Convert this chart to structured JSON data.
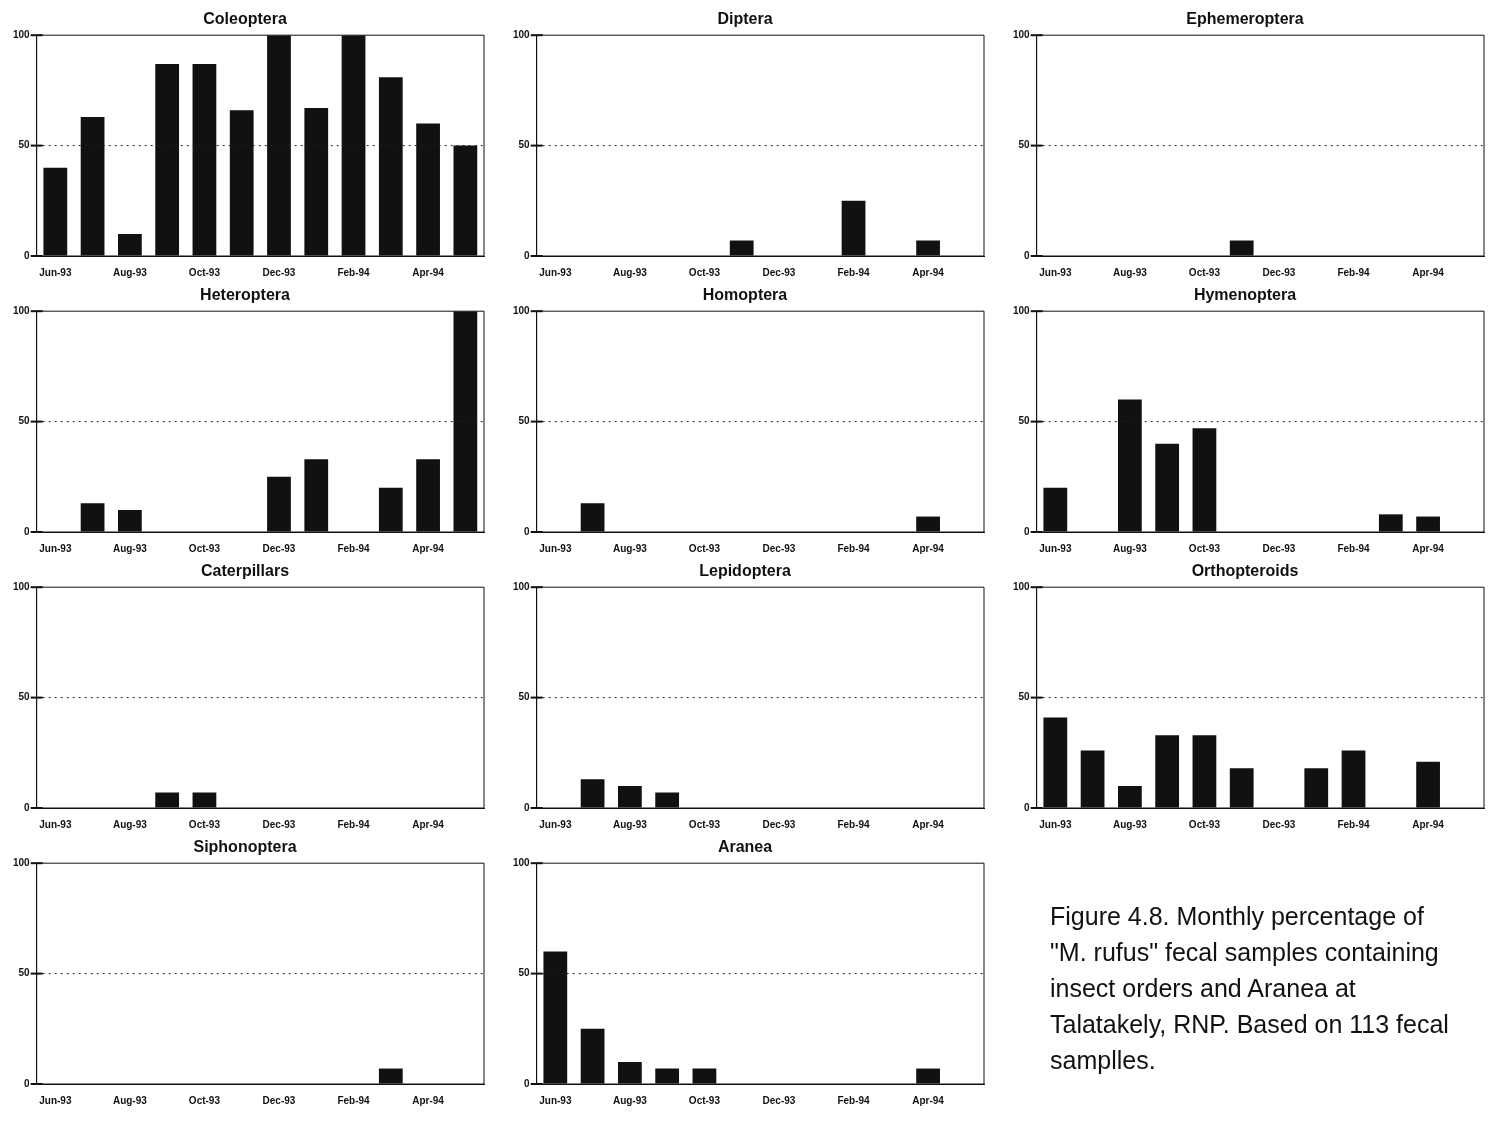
{
  "chart_data": [
    {
      "type": "bar",
      "title": "Coleoptera",
      "categories": [
        "Jun-93",
        null,
        "Aug-93",
        null,
        "Oct-93",
        null,
        "Dec-93",
        null,
        "Feb-94",
        null,
        "Apr-94",
        null
      ],
      "values": [
        40,
        63,
        10,
        87,
        87,
        66,
        100,
        67,
        100,
        81,
        60,
        50
      ],
      "color": "#111111",
      "ylim": [
        0,
        100
      ],
      "yticks": [
        0,
        50,
        100
      ],
      "ref_lines": [
        {
          "axis": "y",
          "value": 50,
          "line_style": "dotted"
        }
      ]
    },
    {
      "type": "bar",
      "title": "Diptera",
      "categories": [
        "Jun-93",
        null,
        "Aug-93",
        null,
        "Oct-93",
        null,
        "Dec-93",
        null,
        "Feb-94",
        null,
        "Apr-94",
        null
      ],
      "values": [
        0,
        0,
        0,
        0,
        0,
        7,
        0,
        0,
        25,
        0,
        7,
        0
      ],
      "color": "#111111",
      "ylim": [
        0,
        100
      ],
      "yticks": [
        0,
        50,
        100
      ],
      "ref_lines": [
        {
          "axis": "y",
          "value": 50,
          "line_style": "dotted"
        }
      ]
    },
    {
      "type": "bar",
      "title": "Ephemeroptera",
      "categories": [
        "Jun-93",
        null,
        "Aug-93",
        null,
        "Oct-93",
        null,
        "Dec-93",
        null,
        "Feb-94",
        null,
        "Apr-94",
        null
      ],
      "values": [
        0,
        0,
        0,
        0,
        0,
        7,
        0,
        0,
        0,
        0,
        0,
        0
      ],
      "color": "#111111",
      "ylim": [
        0,
        100
      ],
      "yticks": [
        0,
        50,
        100
      ],
      "ref_lines": [
        {
          "axis": "y",
          "value": 50,
          "line_style": "dotted"
        }
      ]
    },
    {
      "type": "bar",
      "title": "Heteroptera",
      "categories": [
        "Jun-93",
        null,
        "Aug-93",
        null,
        "Oct-93",
        null,
        "Dec-93",
        null,
        "Feb-94",
        null,
        "Apr-94",
        null
      ],
      "values": [
        0,
        13,
        10,
        0,
        0,
        0,
        25,
        33,
        0,
        20,
        33,
        100
      ],
      "color": "#111111",
      "ylim": [
        0,
        100
      ],
      "yticks": [
        0,
        50,
        100
      ],
      "ref_lines": [
        {
          "axis": "y",
          "value": 50,
          "line_style": "dotted"
        }
      ]
    },
    {
      "type": "bar",
      "title": "Homoptera",
      "categories": [
        "Jun-93",
        null,
        "Aug-93",
        null,
        "Oct-93",
        null,
        "Dec-93",
        null,
        "Feb-94",
        null,
        "Apr-94",
        null
      ],
      "values": [
        0,
        13,
        0,
        0,
        0,
        0,
        0,
        0,
        0,
        0,
        7,
        0
      ],
      "color": "#111111",
      "ylim": [
        0,
        100
      ],
      "yticks": [
        0,
        50,
        100
      ],
      "ref_lines": [
        {
          "axis": "y",
          "value": 50,
          "line_style": "dotted"
        }
      ]
    },
    {
      "type": "bar",
      "title": "Hymenoptera",
      "categories": [
        "Jun-93",
        null,
        "Aug-93",
        null,
        "Oct-93",
        null,
        "Dec-93",
        null,
        "Feb-94",
        null,
        "Apr-94",
        null
      ],
      "values": [
        20,
        0,
        60,
        40,
        47,
        0,
        0,
        0,
        0,
        8,
        7,
        0
      ],
      "color": "#111111",
      "ylim": [
        0,
        100
      ],
      "yticks": [
        0,
        50,
        100
      ],
      "ref_lines": [
        {
          "axis": "y",
          "value": 50,
          "line_style": "dotted"
        }
      ]
    },
    {
      "type": "bar",
      "title": "Caterpillars",
      "categories": [
        "Jun-93",
        null,
        "Aug-93",
        null,
        "Oct-93",
        null,
        "Dec-93",
        null,
        "Feb-94",
        null,
        "Apr-94",
        null
      ],
      "values": [
        0,
        0,
        0,
        7,
        7,
        0,
        0,
        0,
        0,
        0,
        0,
        0
      ],
      "color": "#111111",
      "ylim": [
        0,
        100
      ],
      "yticks": [
        0,
        50,
        100
      ],
      "ref_lines": [
        {
          "axis": "y",
          "value": 50,
          "line_style": "dotted"
        }
      ]
    },
    {
      "type": "bar",
      "title": "Lepidoptera",
      "categories": [
        "Jun-93",
        null,
        "Aug-93",
        null,
        "Oct-93",
        null,
        "Dec-93",
        null,
        "Feb-94",
        null,
        "Apr-94",
        null
      ],
      "values": [
        0,
        13,
        10,
        7,
        0,
        0,
        0,
        0,
        0,
        0,
        0,
        0
      ],
      "color": "#111111",
      "ylim": [
        0,
        100
      ],
      "yticks": [
        0,
        50,
        100
      ],
      "ref_lines": [
        {
          "axis": "y",
          "value": 50,
          "line_style": "dotted"
        }
      ]
    },
    {
      "type": "bar",
      "title": "Orthopteroids",
      "categories": [
        "Jun-93",
        null,
        "Aug-93",
        null,
        "Oct-93",
        null,
        "Dec-93",
        null,
        "Feb-94",
        null,
        "Apr-94",
        null
      ],
      "values": [
        41,
        26,
        10,
        33,
        33,
        18,
        0,
        18,
        26,
        0,
        21,
        0
      ],
      "color": "#111111",
      "ylim": [
        0,
        100
      ],
      "yticks": [
        0,
        50,
        100
      ],
      "ref_lines": [
        {
          "axis": "y",
          "value": 50,
          "line_style": "dotted"
        }
      ]
    },
    {
      "type": "bar",
      "title": "Siphonoptera",
      "categories": [
        "Jun-93",
        null,
        "Aug-93",
        null,
        "Oct-93",
        null,
        "Dec-93",
        null,
        "Feb-94",
        null,
        "Apr-94",
        null
      ],
      "values": [
        0,
        0,
        0,
        0,
        0,
        0,
        0,
        0,
        0,
        7,
        0,
        0
      ],
      "color": "#111111",
      "ylim": [
        0,
        100
      ],
      "yticks": [
        0,
        50,
        100
      ],
      "ref_lines": [
        {
          "axis": "y",
          "value": 50,
          "line_style": "dotted"
        }
      ]
    },
    {
      "type": "bar",
      "title": "Aranea",
      "categories": [
        "Jun-93",
        null,
        "Aug-93",
        null,
        "Oct-93",
        null,
        "Dec-93",
        null,
        "Feb-94",
        null,
        "Apr-94",
        null
      ],
      "values": [
        60,
        25,
        10,
        7,
        7,
        0,
        0,
        0,
        0,
        0,
        7,
        0
      ],
      "color": "#111111",
      "ylim": [
        0,
        100
      ],
      "yticks": [
        0,
        50,
        100
      ],
      "ref_lines": [
        {
          "axis": "y",
          "value": 50,
          "line_style": "dotted"
        }
      ]
    },
    {
      "type": "other",
      "annotations": [
        "Figure 4.8.  Monthly percentage of \"M. rufus\" fecal samples containing insect orders and Aranea at Talatakely, RNP.  Based on 113 fecal samplles."
      ]
    }
  ]
}
